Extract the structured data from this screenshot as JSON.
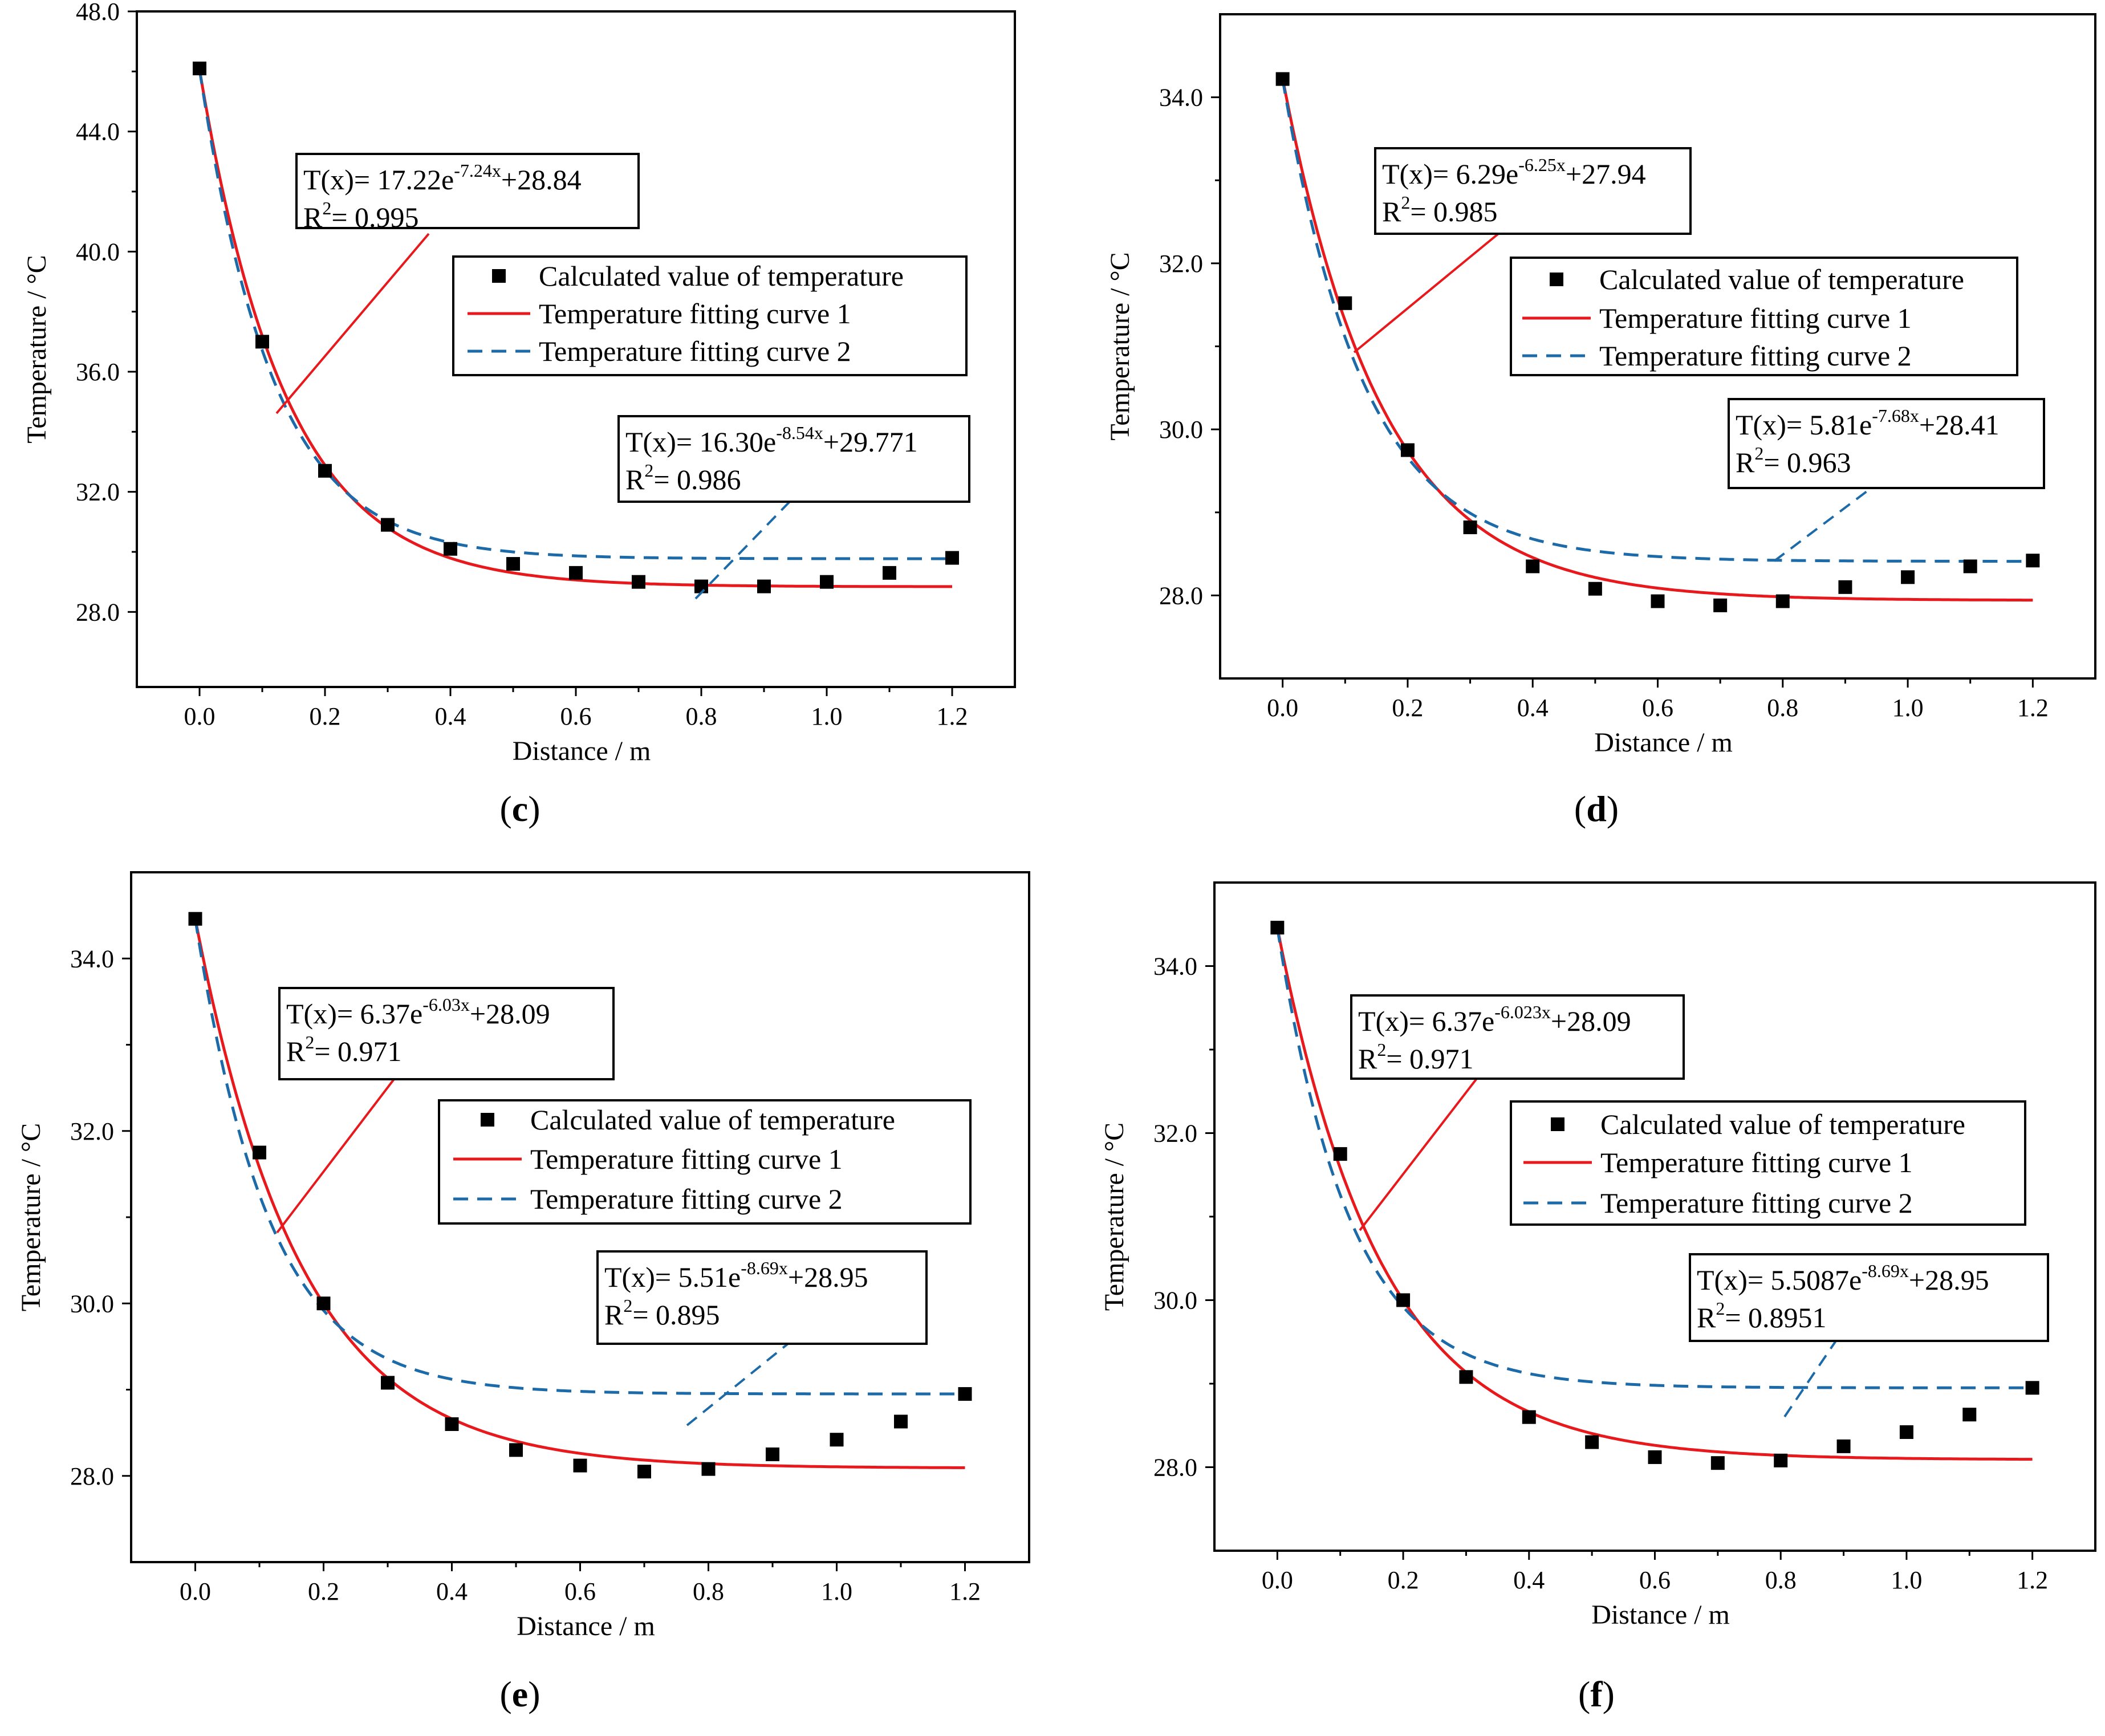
{
  "figure_title": "",
  "chart_data": [
    {
      "type": "scatter",
      "panel": "c",
      "xlabel": "Distance / m",
      "ylabel": "Temperature / °C",
      "xlim": [
        -0.1,
        1.3
      ],
      "ylim": [
        25.5,
        48.0
      ],
      "xticks": [
        0.0,
        0.2,
        0.4,
        0.6,
        0.8,
        1.0,
        1.2
      ],
      "xtick_labels": [
        "0.0",
        "0.2",
        "0.4",
        "0.6",
        "0.8",
        "1.0",
        "1.2"
      ],
      "yticks": [
        28.0,
        32.0,
        36.0,
        40.0,
        44.0,
        48.0
      ],
      "ytick_labels": [
        "28.0",
        "32.0",
        "36.0",
        "40.0",
        "44.0",
        "48.0"
      ],
      "series": [
        {
          "name": "Calculated value of temperature",
          "kind": "points",
          "color": "#000000",
          "x": [
            0.0,
            0.1,
            0.2,
            0.3,
            0.4,
            0.5,
            0.6,
            0.7,
            0.8,
            0.9,
            1.0,
            1.1,
            1.2
          ],
          "y": [
            46.1,
            37.0,
            32.7,
            30.9,
            30.1,
            29.6,
            29.3,
            29.0,
            28.85,
            28.85,
            29.0,
            29.3,
            29.8
          ]
        },
        {
          "name": "Temperature fitting curve 1",
          "kind": "fit",
          "color": "#e8191c",
          "a": 17.22,
          "b": 7.24,
          "c": 28.84
        },
        {
          "name": "Temperature fitting curve 2",
          "kind": "fit",
          "color": "#1c6aa8",
          "dashed": true,
          "a": 16.3,
          "b": 8.54,
          "c": 29.771
        }
      ],
      "equation1": {
        "prefix": "T(x)= 17.22e",
        "exp": "-7.24x",
        "suffix": "+28.84",
        "r2_value": "= 0.995"
      },
      "equation2": {
        "prefix": "T(x)= 16.30e",
        "exp": "-8.54x",
        "suffix": "+29.771",
        "r2_value": "= 0.986"
      },
      "legend_position": "top-right"
    },
    {
      "type": "scatter",
      "panel": "d",
      "xlabel": "Distance / m",
      "ylabel": "Temperature / °C",
      "xlim": [
        -0.1,
        1.3
      ],
      "ylim": [
        27.0,
        35.0
      ],
      "xticks": [
        0.0,
        0.2,
        0.4,
        0.6,
        0.8,
        1.0,
        1.2
      ],
      "xtick_labels": [
        "0.0",
        "0.2",
        "0.4",
        "0.6",
        "0.8",
        "1.0",
        "1.2"
      ],
      "yticks": [
        28.0,
        30.0,
        32.0,
        34.0
      ],
      "ytick_labels": [
        "28.0",
        "30.0",
        "32.0",
        "34.0"
      ],
      "series": [
        {
          "name": "Calculated value of temperature",
          "kind": "points",
          "color": "#000000",
          "x": [
            0.0,
            0.1,
            0.2,
            0.3,
            0.4,
            0.5,
            0.6,
            0.7,
            0.8,
            0.9,
            1.0,
            1.1,
            1.2
          ],
          "y": [
            34.22,
            31.52,
            29.75,
            28.82,
            28.35,
            28.08,
            27.93,
            27.88,
            27.93,
            28.1,
            28.22,
            28.35,
            28.42
          ]
        },
        {
          "name": "Temperature fitting curve 1",
          "kind": "fit",
          "color": "#e8191c",
          "a": 6.29,
          "b": 6.25,
          "c": 27.94
        },
        {
          "name": "Temperature fitting curve 2",
          "kind": "fit",
          "color": "#1c6aa8",
          "dashed": true,
          "a": 5.81,
          "b": 7.68,
          "c": 28.41
        }
      ],
      "equation1": {
        "prefix": "T(x)= 6.29e",
        "exp": "-6.25x",
        "suffix": "+27.94",
        "r2_value": "= 0.985"
      },
      "equation2": {
        "prefix": "T(x)= 5.81e",
        "exp": "-7.68x",
        "suffix": "+28.41",
        "r2_value": "= 0.963"
      },
      "legend_position": "top-right"
    },
    {
      "type": "scatter",
      "panel": "e",
      "xlabel": "Distance / m",
      "ylabel": "Temperature / °C",
      "xlim": [
        -0.1,
        1.3
      ],
      "ylim": [
        27.0,
        35.0
      ],
      "xticks": [
        0.0,
        0.2,
        0.4,
        0.6,
        0.8,
        1.0,
        1.2
      ],
      "xtick_labels": [
        "0.0",
        "0.2",
        "0.4",
        "0.6",
        "0.8",
        "1.0",
        "1.2"
      ],
      "yticks": [
        28.0,
        30.0,
        32.0,
        34.0
      ],
      "ytick_labels": [
        "28.0",
        "30.0",
        "32.0",
        "34.0"
      ],
      "series": [
        {
          "name": "Calculated value of temperature",
          "kind": "points",
          "color": "#000000",
          "x": [
            0.0,
            0.1,
            0.2,
            0.3,
            0.4,
            0.5,
            0.6,
            0.7,
            0.8,
            0.9,
            1.0,
            1.1,
            1.2
          ],
          "y": [
            34.46,
            31.75,
            30.0,
            29.08,
            28.6,
            28.3,
            28.12,
            28.05,
            28.08,
            28.25,
            28.42,
            28.63,
            28.95
          ]
        },
        {
          "name": "Temperature fitting curve 1",
          "kind": "fit",
          "color": "#e8191c",
          "a": 6.37,
          "b": 6.03,
          "c": 28.09
        },
        {
          "name": "Temperature fitting curve 2",
          "kind": "fit",
          "color": "#1c6aa8",
          "dashed": true,
          "a": 5.51,
          "b": 8.69,
          "c": 28.95
        }
      ],
      "equation1": {
        "prefix": "T(x)= 6.37e",
        "exp": "-6.03x",
        "suffix": "+28.09",
        "r2_value": "= 0.971"
      },
      "equation2": {
        "prefix": "T(x)= 5.51e",
        "exp": "-8.69x",
        "suffix": "+28.95",
        "r2_value": "= 0.895"
      },
      "legend_position": "top-right"
    },
    {
      "type": "scatter",
      "panel": "f",
      "xlabel": "Distance / m",
      "ylabel": "Temperature / °C",
      "xlim": [
        -0.1,
        1.3
      ],
      "ylim": [
        27.0,
        35.0
      ],
      "xticks": [
        0.0,
        0.2,
        0.4,
        0.6,
        0.8,
        1.0,
        1.2
      ],
      "xtick_labels": [
        "0.0",
        "0.2",
        "0.4",
        "0.6",
        "0.8",
        "1.0",
        "1.2"
      ],
      "yticks": [
        28.0,
        30.0,
        32.0,
        34.0
      ],
      "ytick_labels": [
        "28.0",
        "30.0",
        "32.0",
        "34.0"
      ],
      "series": [
        {
          "name": "Calculated value of temperature",
          "kind": "points",
          "color": "#000000",
          "x": [
            0.0,
            0.1,
            0.2,
            0.3,
            0.4,
            0.5,
            0.6,
            0.7,
            0.8,
            0.9,
            1.0,
            1.1,
            1.2
          ],
          "y": [
            34.46,
            31.75,
            30.0,
            29.08,
            28.6,
            28.3,
            28.12,
            28.05,
            28.08,
            28.25,
            28.42,
            28.63,
            28.95
          ]
        },
        {
          "name": "Temperature fitting curve 1",
          "kind": "fit",
          "color": "#e8191c",
          "a": 6.37,
          "b": 6.023,
          "c": 28.09
        },
        {
          "name": "Temperature fitting curve 2",
          "kind": "fit",
          "color": "#1c6aa8",
          "dashed": true,
          "a": 5.5087,
          "b": 8.69,
          "c": 28.95
        }
      ],
      "equation1": {
        "prefix": "T(x)= 6.37e",
        "exp": "-6.023x",
        "suffix": "+28.09",
        "r2_value": "= 0.971"
      },
      "equation2": {
        "prefix": "T(x)= 5.5087e",
        "exp": "-8.69x",
        "suffix": "+28.95",
        "r2_value": "= 0.8951"
      },
      "legend_position": "top-right"
    }
  ],
  "legend": {
    "points": "Calculated value of temperature",
    "fit1": "Temperature fitting curve 1",
    "fit2": "Temperature fitting curve 2"
  },
  "r2_symbol": "R",
  "r2_exponent": "2",
  "panel_labels": [
    {
      "open": "(",
      "letter": "c",
      "close": ")"
    },
    {
      "open": "(",
      "letter": "d",
      "close": ")"
    },
    {
      "open": "(",
      "letter": "e",
      "close": ")"
    },
    {
      "open": "(",
      "letter": "f",
      "close": ")"
    }
  ],
  "colors": {
    "fit1": "#e8191c",
    "fit2": "#1c6aa8",
    "points": "#000000",
    "axes": "#000000",
    "background": "#ffffff"
  }
}
